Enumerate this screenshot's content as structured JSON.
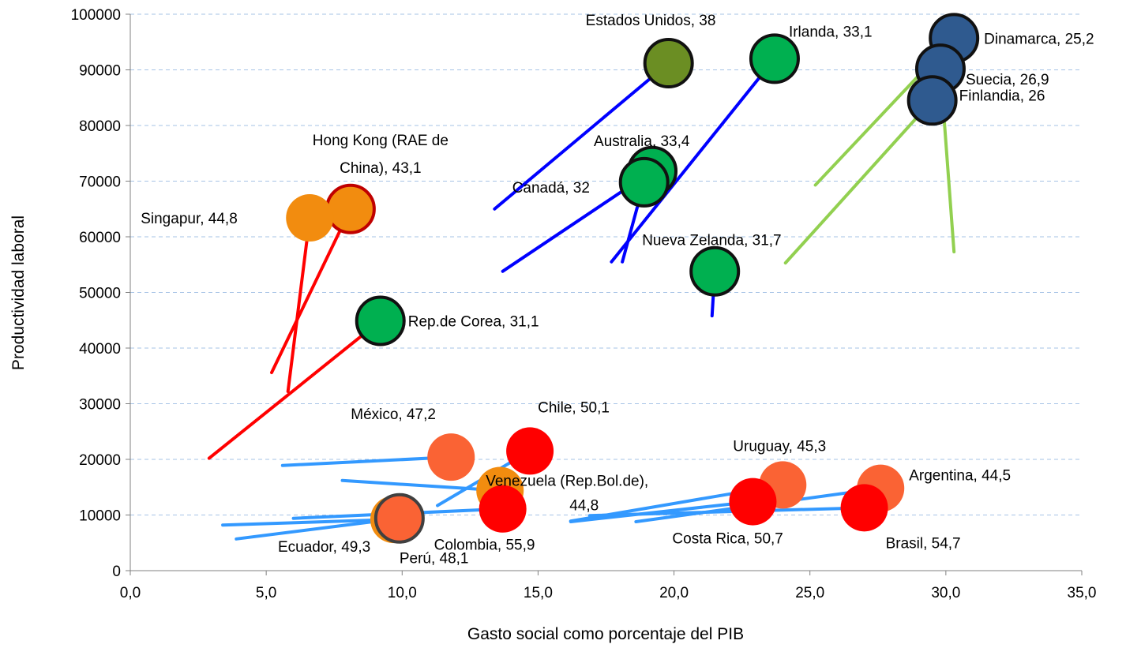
{
  "chart_data": {
    "type": "scatter",
    "title": "",
    "xlabel": "Gasto social como porcentaje del PIB",
    "ylabel": "Productividad laboral",
    "xlim": [
      0,
      35
    ],
    "ylim": [
      0,
      100000
    ],
    "x_ticks": [
      "0,0",
      "5,0",
      "10,0",
      "15,0",
      "20,0",
      "25,0",
      "30,0",
      "35,0"
    ],
    "y_ticks": [
      "0",
      "10000",
      "20000",
      "30000",
      "40000",
      "50000",
      "60000",
      "70000",
      "80000",
      "90000",
      "100000"
    ],
    "grid": "horizontal dashed",
    "legend": "none",
    "points": [
      {
        "label": "Estados Unidos, 38",
        "x": 19.8,
        "y": 91200,
        "color": "#6b8e23",
        "stroke": "#111111"
      },
      {
        "label": "Irlanda, 33,1",
        "x": 23.7,
        "y": 92000,
        "color": "#00b050",
        "stroke": "#111111"
      },
      {
        "label": "Dinamarca, 25,2",
        "x": 30.3,
        "y": 95700,
        "color": "#2f5a8f",
        "stroke": "#111111"
      },
      {
        "label": "Suecia, 26,9",
        "x": 29.8,
        "y": 90200,
        "color": "#2f5a8f",
        "stroke": "#111111"
      },
      {
        "label": "Finlandia, 26",
        "x": 29.5,
        "y": 84500,
        "color": "#2f5a8f",
        "stroke": "#111111"
      },
      {
        "label": "Australia, 33,4",
        "x": 19.2,
        "y": 71800,
        "color": "#00b050",
        "stroke": "#111111"
      },
      {
        "label": "Canadá, 32",
        "x": 18.9,
        "y": 69800,
        "color": "#00b050",
        "stroke": "#111111"
      },
      {
        "label": "Nueva Zelanda, 31,7",
        "x": 21.5,
        "y": 53800,
        "color": "#00b050",
        "stroke": "#111111"
      },
      {
        "label": "Hong Kong (RAE de China), 43,1",
        "x": 8.1,
        "y": 65000,
        "color": "#f28c0f",
        "stroke": "#c00000"
      },
      {
        "label": "Singapur, 44,8",
        "x": 6.6,
        "y": 63400,
        "color": "#f28c0f",
        "stroke": ""
      },
      {
        "label": "Rep.de Corea, 31,1",
        "x": 9.2,
        "y": 44900,
        "color": "#00b050",
        "stroke": "#111111"
      },
      {
        "label": "México, 47,2",
        "x": 11.8,
        "y": 20400,
        "color": "#fa6334",
        "stroke": ""
      },
      {
        "label": "Chile, 50,1",
        "x": 14.7,
        "y": 21500,
        "color": "#ff0000",
        "stroke": ""
      },
      {
        "label": "Venezuela (Rep.Bol.de), 44,8",
        "x": 13.6,
        "y": 14400,
        "color": "#f28c0f",
        "stroke": ""
      },
      {
        "label": "Colombia, 55,9",
        "x": 13.7,
        "y": 11100,
        "color": "#ff0000",
        "stroke": ""
      },
      {
        "label": "Ecuador, 49,3",
        "x": 9.7,
        "y": 9200,
        "color": "#f28c0f",
        "stroke": ""
      },
      {
        "label": "Perú, 48,1",
        "x": 9.9,
        "y": 9400,
        "color": "#fa6334",
        "stroke": "#404040"
      },
      {
        "label": "Uruguay, 45,3",
        "x": 24.0,
        "y": 15400,
        "color": "#fa6334",
        "stroke": ""
      },
      {
        "label": "Costa Rica, 50,7",
        "x": 22.9,
        "y": 12400,
        "color": "#ff0000",
        "stroke": ""
      },
      {
        "label": "Argentina, 44,5",
        "x": 27.6,
        "y": 14800,
        "color": "#fa6334",
        "stroke": ""
      },
      {
        "label": "Brasil, 54,7",
        "x": 27.0,
        "y": 11300,
        "color": "#ff0000",
        "stroke": ""
      }
    ],
    "trails": [
      {
        "color": "#0000ff",
        "x1": 13.4,
        "y1": 65000,
        "x2": 19.8,
        "y2": 91200
      },
      {
        "color": "#0000ff",
        "x1": 17.7,
        "y1": 55500,
        "x2": 23.7,
        "y2": 92000
      },
      {
        "color": "#0000ff",
        "x1": 13.7,
        "y1": 53800,
        "x2": 19.2,
        "y2": 71800
      },
      {
        "color": "#0000ff",
        "x1": 18.1,
        "y1": 55500,
        "x2": 18.9,
        "y2": 69800
      },
      {
        "color": "#0000ff",
        "x1": 21.4,
        "y1": 45800,
        "x2": 21.5,
        "y2": 53800
      },
      {
        "color": "#92d050",
        "x1": 25.2,
        "y1": 69300,
        "x2": 30.3,
        "y2": 95700
      },
      {
        "color": "#92d050",
        "x1": 30.3,
        "y1": 57300,
        "x2": 29.8,
        "y2": 90200
      },
      {
        "color": "#92d050",
        "x1": 24.1,
        "y1": 55300,
        "x2": 29.5,
        "y2": 84500
      },
      {
        "color": "#ff0000",
        "x1": 5.2,
        "y1": 35600,
        "x2": 8.1,
        "y2": 65000
      },
      {
        "color": "#ff0000",
        "x1": 5.8,
        "y1": 32200,
        "x2": 6.6,
        "y2": 63400
      },
      {
        "color": "#ff0000",
        "x1": 2.9,
        "y1": 20200,
        "x2": 9.2,
        "y2": 44900
      },
      {
        "color": "#3399ff",
        "x1": 5.6,
        "y1": 18900,
        "x2": 11.8,
        "y2": 20400
      },
      {
        "color": "#3399ff",
        "x1": 11.3,
        "y1": 11700,
        "x2": 14.7,
        "y2": 21500
      },
      {
        "color": "#3399ff",
        "x1": 7.8,
        "y1": 16200,
        "x2": 13.6,
        "y2": 14400
      },
      {
        "color": "#3399ff",
        "x1": 6.0,
        "y1": 9400,
        "x2": 13.7,
        "y2": 11100
      },
      {
        "color": "#3399ff",
        "x1": 3.4,
        "y1": 8200,
        "x2": 9.7,
        "y2": 9200
      },
      {
        "color": "#3399ff",
        "x1": 3.9,
        "y1": 5700,
        "x2": 9.9,
        "y2": 9400
      },
      {
        "color": "#3399ff",
        "x1": 16.2,
        "y1": 8900,
        "x2": 24.0,
        "y2": 15400
      },
      {
        "color": "#3399ff",
        "x1": 16.2,
        "y1": 8800,
        "x2": 22.9,
        "y2": 12400
      },
      {
        "color": "#3399ff",
        "x1": 18.6,
        "y1": 8800,
        "x2": 27.6,
        "y2": 14800
      },
      {
        "color": "#3399ff",
        "x1": 16.9,
        "y1": 9900,
        "x2": 27.0,
        "y2": 11300
      }
    ]
  }
}
